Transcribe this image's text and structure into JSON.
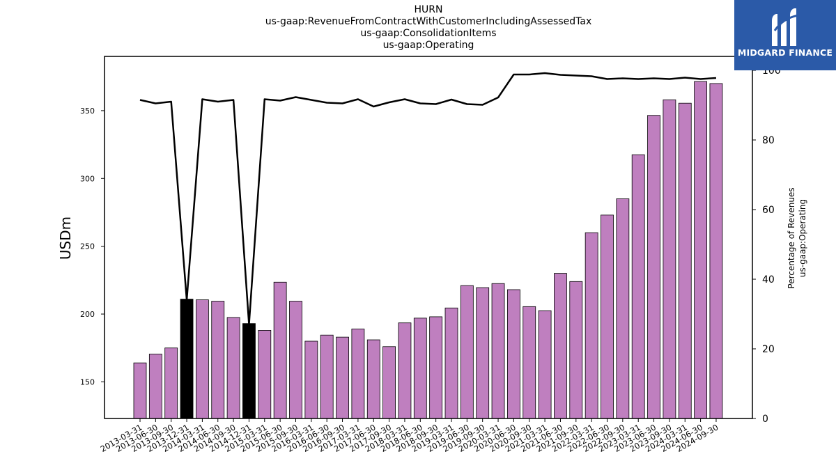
{
  "chart_data": {
    "type": "bar",
    "title_lines": [
      "HURN",
      "us-gaap:RevenueFromContractWithCustomerIncludingAssessedTax",
      "us-gaap:ConsolidationItems",
      "us-gaap:Operating"
    ],
    "ylabel": "USDm",
    "y2label_lines": [
      "Percentage of Revenues",
      "us-gaap:Operating"
    ],
    "ylim": [
      123,
      390
    ],
    "y2lim": [
      0,
      104
    ],
    "yticks": [
      150,
      200,
      250,
      300,
      350
    ],
    "y2ticks": [
      0,
      20,
      40,
      60,
      80,
      100
    ],
    "categories": [
      "2013-03-31",
      "2013-06-30",
      "2013-09-30",
      "2013-12-31",
      "2014-03-31",
      "2014-06-30",
      "2014-09-30",
      "2014-12-31",
      "2015-03-31",
      "2015-06-30",
      "2015-09-30",
      "2016-03-31",
      "2016-06-30",
      "2016-09-30",
      "2017-03-31",
      "2017-06-30",
      "2017-09-30",
      "2018-03-31",
      "2018-06-30",
      "2018-09-30",
      "2019-03-31",
      "2019-06-30",
      "2019-09-30",
      "2020-03-31",
      "2020-06-30",
      "2020-09-30",
      "2021-03-31",
      "2021-06-30",
      "2021-09-30",
      "2022-03-31",
      "2022-06-30",
      "2022-09-30",
      "2023-03-31",
      "2023-06-30",
      "2023-09-30",
      "2024-03-31",
      "2024-06-30",
      "2024-09-30"
    ],
    "series": [
      {
        "kind": "bar",
        "values": [
          164,
          170.5,
          175,
          211,
          210.5,
          209.5,
          197.5,
          193,
          188,
          223.5,
          209.5,
          180,
          184.5,
          183,
          189,
          181,
          176,
          193.5,
          197,
          198,
          204.5,
          221,
          219.5,
          222.5,
          218,
          205.5,
          202.5,
          230,
          224,
          260,
          273,
          285,
          317.5,
          346.5,
          358,
          355.5,
          371.5,
          370
        ],
        "highlight_indices": [
          3,
          7
        ],
        "color": "#bf7fbf",
        "highlight_color": "#000000"
      },
      {
        "kind": "line",
        "axis": "right",
        "values": [
          91.5,
          90.5,
          91,
          34,
          91.7,
          91,
          91.5,
          27,
          91.7,
          91.3,
          92.3,
          91.5,
          90.7,
          90.5,
          91.7,
          89.6,
          90.8,
          91.7,
          90.5,
          90.3,
          91.6,
          90.3,
          90.1,
          92.2,
          98.8,
          98.8,
          99.2,
          98.7,
          98.5,
          98.3,
          97.5,
          97.7,
          97.5,
          97.7,
          97.5,
          97.9,
          97.5,
          97.8
        ],
        "color": "#000000"
      }
    ],
    "grid": false,
    "legend": "none"
  },
  "logo": {
    "text": "MIDGARD FINANCE",
    "color": "#2b5aa8"
  }
}
